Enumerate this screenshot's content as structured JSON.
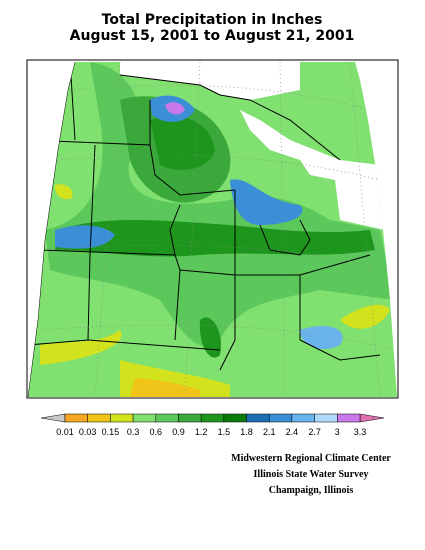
{
  "title": {
    "line1": "Total Precipitation in Inches",
    "line2": "August 15, 2001 to August 21, 2001"
  },
  "legend": {
    "labels": [
      0.01,
      0.03,
      0.15,
      0.3,
      0.6,
      0.9,
      1.2,
      1.5,
      1.8,
      2.1,
      2.4,
      2.7,
      3,
      3.3
    ],
    "below_color": "#c8c8c8",
    "colors": [
      "#f5a623",
      "#f0c419",
      "#d2e21c",
      "#80e070",
      "#5cc85c",
      "#3aa83a",
      "#1e961e",
      "#0a7a0a",
      "#1f6fb5",
      "#3a8fd6",
      "#6ab4ee",
      "#b0d8f8",
      "#c878e8"
    ],
    "above_color": "#e070b0"
  },
  "credits": [
    "Midwestern Regional Climate Center",
    "Illinois State Water Survey",
    "Champaign, Illinois"
  ]
}
